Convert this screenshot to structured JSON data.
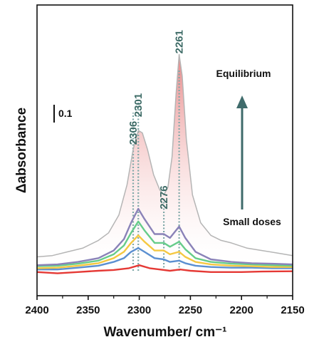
{
  "chart_data": {
    "type": "line",
    "xlabel": "Wavenumber/ cm⁻¹",
    "ylabel": "Δabsorbance",
    "xlim": [
      2400,
      2150
    ],
    "x_reversed": true,
    "xticks": [
      "2400",
      "2350",
      "2300",
      "2250",
      "2200",
      "2150"
    ],
    "grid": false,
    "scale_bar": {
      "label": "0.1",
      "value": 0.1
    },
    "peak_labels": [
      {
        "label": "2306",
        "x": 2306,
        "y": 0.545
      },
      {
        "label": "2301",
        "x": 2301,
        "y": 0.655
      },
      {
        "label": "2276",
        "x": 2276,
        "y": 0.29
      },
      {
        "label": "2261",
        "x": 2261,
        "y": 0.905
      }
    ],
    "annotations": {
      "top": "Equilibrium",
      "bottom": "Small doses"
    },
    "arrow": {
      "from": "Small doses",
      "to": "Equilibrium"
    },
    "peak_markers": [
      {
        "x": 2306,
        "y_top": 0.625
      },
      {
        "x": 2301,
        "y_top": 0.675
      },
      {
        "x": 2276,
        "y_top": 0.285
      },
      {
        "x": 2261,
        "y_top": 0.795
      }
    ],
    "series": [
      {
        "color": "#e53935",
        "points": [
          [
            2400,
            -0.005
          ],
          [
            2380,
            -0.01
          ],
          [
            2360,
            -0.005
          ],
          [
            2340,
            0.0
          ],
          [
            2325,
            0.003
          ],
          [
            2310,
            0.01
          ],
          [
            2300,
            0.022
          ],
          [
            2290,
            0.01
          ],
          [
            2280,
            0.005
          ],
          [
            2270,
            0.0
          ],
          [
            2260,
            0.005
          ],
          [
            2250,
            0.0
          ],
          [
            2230,
            -0.005
          ],
          [
            2200,
            -0.005
          ],
          [
            2180,
            -0.003
          ],
          [
            2150,
            -0.002
          ]
        ]
      },
      {
        "color": "#5b8fd1",
        "points": [
          [
            2400,
            0.005
          ],
          [
            2380,
            0.005
          ],
          [
            2360,
            0.012
          ],
          [
            2340,
            0.02
          ],
          [
            2325,
            0.035
          ],
          [
            2315,
            0.05
          ],
          [
            2308,
            0.075
          ],
          [
            2301,
            0.09
          ],
          [
            2295,
            0.075
          ],
          [
            2285,
            0.05
          ],
          [
            2276,
            0.045
          ],
          [
            2270,
            0.035
          ],
          [
            2261,
            0.04
          ],
          [
            2255,
            0.03
          ],
          [
            2245,
            0.02
          ],
          [
            2230,
            0.015
          ],
          [
            2210,
            0.012
          ],
          [
            2190,
            0.012
          ],
          [
            2170,
            0.01
          ],
          [
            2150,
            0.01
          ]
        ]
      },
      {
        "color": "#f5c842",
        "points": [
          [
            2400,
            0.01
          ],
          [
            2380,
            0.012
          ],
          [
            2360,
            0.02
          ],
          [
            2340,
            0.03
          ],
          [
            2325,
            0.05
          ],
          [
            2315,
            0.075
          ],
          [
            2308,
            0.11
          ],
          [
            2301,
            0.14
          ],
          [
            2295,
            0.115
          ],
          [
            2285,
            0.08
          ],
          [
            2276,
            0.08
          ],
          [
            2270,
            0.065
          ],
          [
            2261,
            0.075
          ],
          [
            2255,
            0.055
          ],
          [
            2245,
            0.035
          ],
          [
            2230,
            0.025
          ],
          [
            2210,
            0.02
          ],
          [
            2190,
            0.018
          ],
          [
            2170,
            0.015
          ],
          [
            2150,
            0.015
          ]
        ]
      },
      {
        "color": "#66cc8a",
        "points": [
          [
            2400,
            0.018
          ],
          [
            2380,
            0.02
          ],
          [
            2360,
            0.028
          ],
          [
            2340,
            0.04
          ],
          [
            2325,
            0.065
          ],
          [
            2315,
            0.1
          ],
          [
            2308,
            0.15
          ],
          [
            2301,
            0.195
          ],
          [
            2295,
            0.16
          ],
          [
            2285,
            0.11
          ],
          [
            2276,
            0.11
          ],
          [
            2270,
            0.095
          ],
          [
            2261,
            0.115
          ],
          [
            2255,
            0.085
          ],
          [
            2245,
            0.05
          ],
          [
            2230,
            0.035
          ],
          [
            2210,
            0.028
          ],
          [
            2190,
            0.025
          ],
          [
            2170,
            0.022
          ],
          [
            2150,
            0.02
          ]
        ]
      },
      {
        "color": "#8a82b8",
        "points": [
          [
            2400,
            0.022
          ],
          [
            2380,
            0.025
          ],
          [
            2360,
            0.035
          ],
          [
            2340,
            0.05
          ],
          [
            2325,
            0.08
          ],
          [
            2315,
            0.125
          ],
          [
            2308,
            0.19
          ],
          [
            2301,
            0.245
          ],
          [
            2295,
            0.205
          ],
          [
            2285,
            0.145
          ],
          [
            2276,
            0.145
          ],
          [
            2270,
            0.13
          ],
          [
            2261,
            0.175
          ],
          [
            2255,
            0.13
          ],
          [
            2245,
            0.075
          ],
          [
            2230,
            0.045
          ],
          [
            2210,
            0.035
          ],
          [
            2190,
            0.03
          ],
          [
            2170,
            0.028
          ],
          [
            2150,
            0.025
          ]
        ]
      },
      {
        "color": "#b5b5b5",
        "fill": true,
        "points": [
          [
            2400,
            0.055
          ],
          [
            2385,
            0.06
          ],
          [
            2370,
            0.075
          ],
          [
            2355,
            0.09
          ],
          [
            2340,
            0.12
          ],
          [
            2330,
            0.15
          ],
          [
            2320,
            0.22
          ],
          [
            2312,
            0.34
          ],
          [
            2306,
            0.48
          ],
          [
            2301,
            0.555
          ],
          [
            2297,
            0.545
          ],
          [
            2292,
            0.48
          ],
          [
            2286,
            0.38
          ],
          [
            2280,
            0.32
          ],
          [
            2276,
            0.3
          ],
          [
            2272,
            0.33
          ],
          [
            2268,
            0.45
          ],
          [
            2264,
            0.7
          ],
          [
            2261,
            0.855
          ],
          [
            2258,
            0.77
          ],
          [
            2254,
            0.52
          ],
          [
            2248,
            0.3
          ],
          [
            2240,
            0.19
          ],
          [
            2230,
            0.14
          ],
          [
            2220,
            0.12
          ],
          [
            2210,
            0.11
          ],
          [
            2195,
            0.09
          ],
          [
            2180,
            0.08
          ],
          [
            2165,
            0.07
          ],
          [
            2150,
            0.06
          ]
        ]
      }
    ]
  }
}
